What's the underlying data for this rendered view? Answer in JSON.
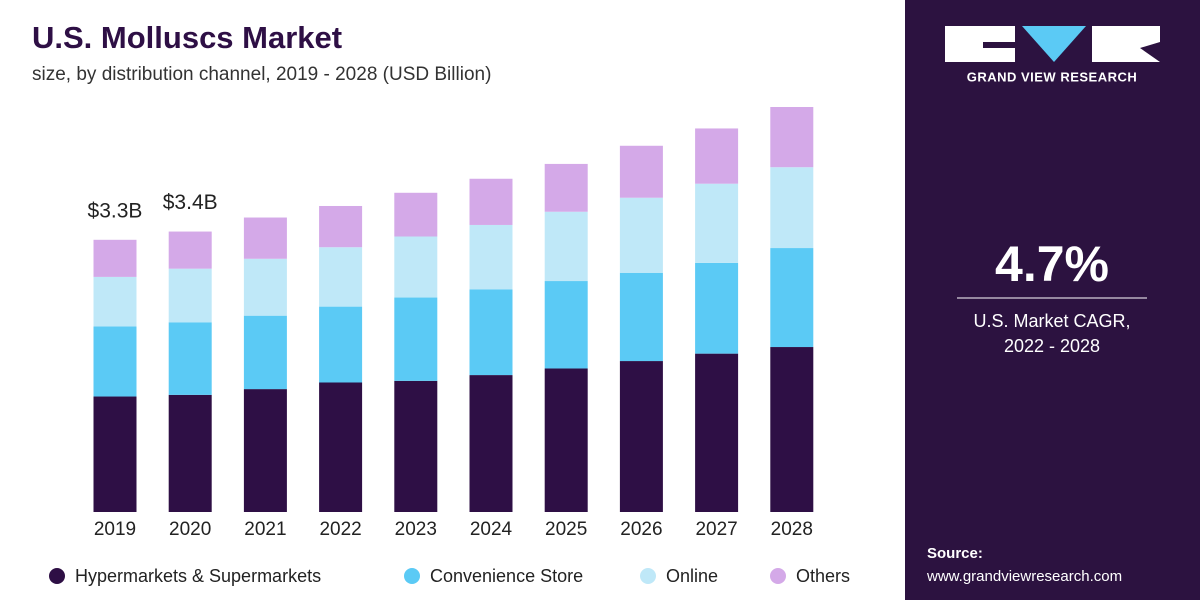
{
  "chart_data": {
    "type": "stacked_bar",
    "title": "U.S. Molluscs Market",
    "subtitle": "size, by distribution channel, 2019 - 2028 (USD Billion)",
    "categories": [
      "2019",
      "2020",
      "2021",
      "2022",
      "2023",
      "2024",
      "2025",
      "2026",
      "2027",
      "2028"
    ],
    "series": [
      {
        "name": "Hypermarkets & Supermarkets",
        "color": "#2e0f45",
        "values": [
          1.4,
          1.42,
          1.49,
          1.57,
          1.59,
          1.66,
          1.74,
          1.83,
          1.92,
          2.0
        ]
      },
      {
        "name": "Convenience Store",
        "color": "#5bcaf5",
        "values": [
          0.85,
          0.88,
          0.89,
          0.92,
          1.01,
          1.04,
          1.06,
          1.07,
          1.1,
          1.2
        ]
      },
      {
        "name": "Online",
        "color": "#bfe8f8",
        "values": [
          0.6,
          0.65,
          0.69,
          0.72,
          0.74,
          0.78,
          0.84,
          0.91,
          0.96,
          0.98
        ]
      },
      {
        "name": "Others",
        "color": "#d4a9e8",
        "values": [
          0.45,
          0.45,
          0.5,
          0.5,
          0.53,
          0.56,
          0.58,
          0.63,
          0.67,
          0.73
        ]
      }
    ],
    "totals": {
      "values": [
        3.3,
        3.4
      ],
      "value_labels": [
        "$3.3B",
        "$3.4B"
      ]
    }
  },
  "sidebar": {
    "brand": "GRAND VIEW RESEARCH",
    "cagr": "4.7%",
    "cagr_caption": [
      "U.S. Market CAGR,",
      "2022 - 2028"
    ],
    "source_label": "Source:",
    "source_url": "www.grandviewresearch.com"
  }
}
